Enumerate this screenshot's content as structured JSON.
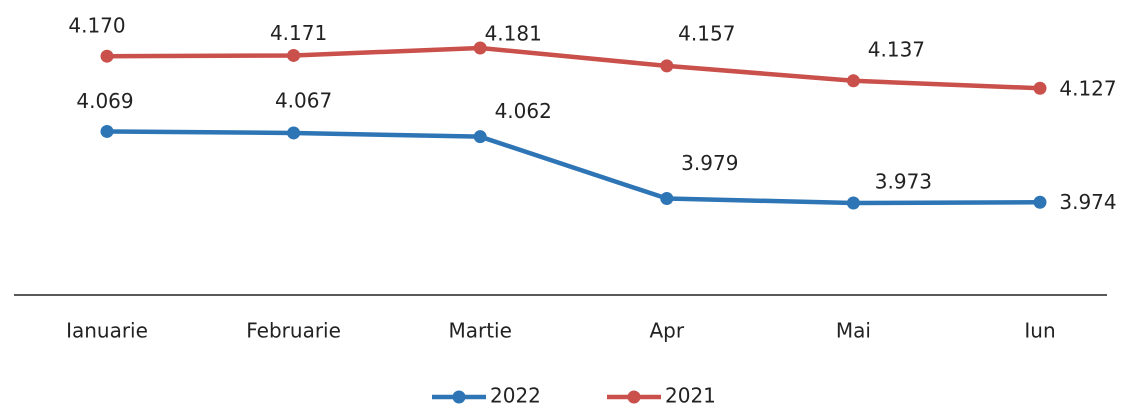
{
  "chart_data": {
    "type": "line",
    "categories": [
      "Ianuarie",
      "Februarie",
      "Martie",
      "Apr",
      "Mai",
      "Iun"
    ],
    "series": [
      {
        "name": "2022",
        "color": "#2e75b6",
        "values": [
          4069,
          4067,
          4062,
          3979,
          3973,
          3974
        ],
        "value_labels": [
          "4.069",
          "4.067",
          "4.062",
          "3.979",
          "3.973",
          "3.974"
        ]
      },
      {
        "name": "2021",
        "color": "#c9504b",
        "values": [
          4170,
          4171,
          4181,
          4157,
          4137,
          4127
        ],
        "value_labels": [
          "4.170",
          "4.171",
          "4.181",
          "4.157",
          "4.137",
          "4.127"
        ]
      }
    ]
  }
}
